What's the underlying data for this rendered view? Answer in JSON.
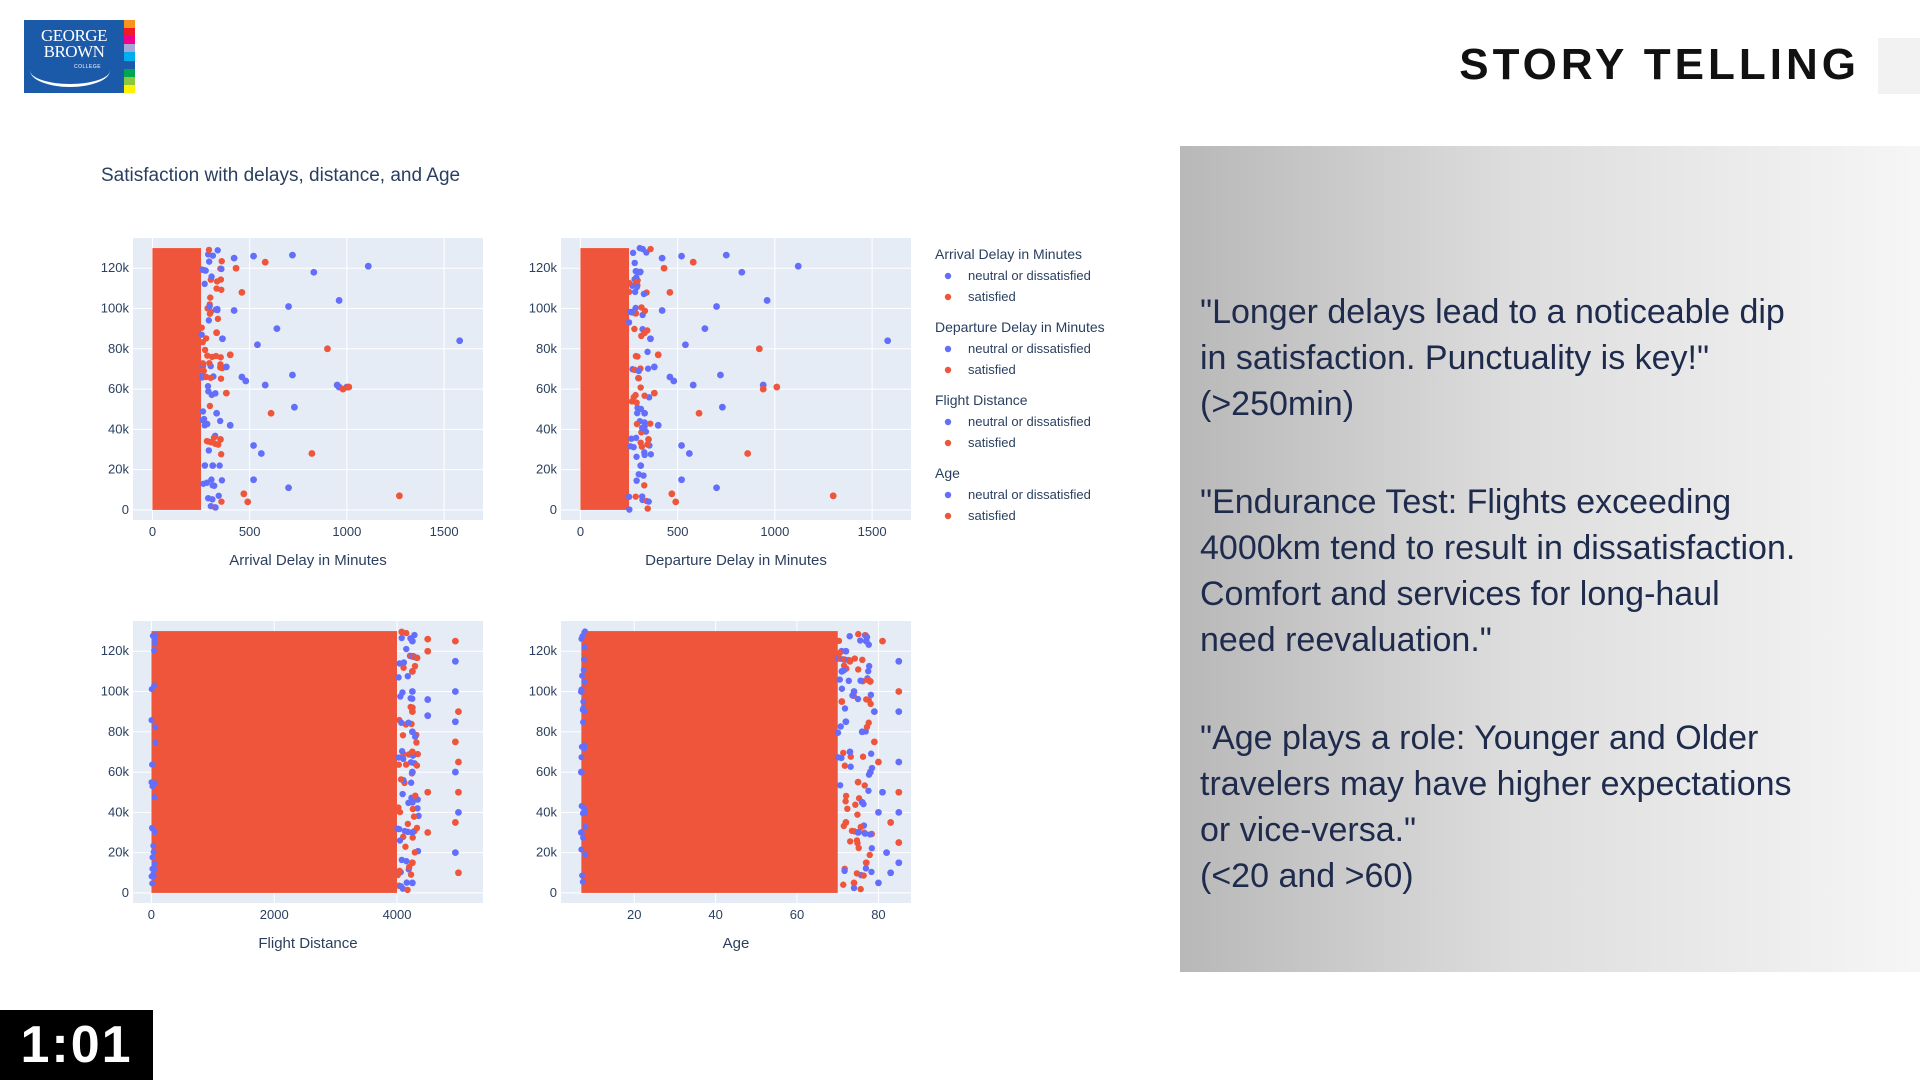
{
  "logo": {
    "line1": "GEORGE",
    "line2": "BROWN",
    "line3": "COLLEGE",
    "stripes": [
      "#f7941d",
      "#ed1c24",
      "#ec008c",
      "#a6a6d8",
      "#00aeef",
      "#1b5aa9",
      "#00a651",
      "#8dc63f",
      "#fff200"
    ]
  },
  "slide_title": "STORY TELLING",
  "timer": "1:01",
  "colors": {
    "neutral": "#636efa",
    "satisfied": "#ef553b",
    "plot_bg": "#e5ecf6",
    "axis_text": "#2a3f5f"
  },
  "chart_data": {
    "type": "scatter",
    "title": "Satisfaction with delays, distance, and Age",
    "y_ticks": [
      0,
      20000,
      40000,
      60000,
      80000,
      100000,
      120000
    ],
    "y_tick_labels": [
      "0",
      "20k",
      "40k",
      "60k",
      "80k",
      "100k",
      "120k"
    ],
    "y_range": [
      -5000,
      135000
    ],
    "series_names": [
      "neutral or dissatisfied",
      "satisfied"
    ],
    "subplots": [
      {
        "xlabel": "Arrival Delay in Minutes",
        "xlim": [
          -100,
          1700
        ],
        "x_ticks": [
          0,
          500,
          1000,
          1500
        ],
        "x_tick_labels": [
          "0",
          "500",
          "1000",
          "1500"
        ],
        "dense_x_max": 250,
        "series": [
          {
            "name": "neutral or dissatisfied",
            "points": [
              [
                420,
                125000
              ],
              [
                520,
                126000
              ],
              [
                720,
                126500
              ],
              [
                830,
                118000
              ],
              [
                1110,
                121000
              ],
              [
                960,
                104000
              ],
              [
                700,
                101000
              ],
              [
                640,
                90000
              ],
              [
                540,
                82000
              ],
              [
                1580,
                84000
              ],
              [
                720,
                67000
              ],
              [
                580,
                62000
              ],
              [
                950,
                62000
              ],
              [
                960,
                61000
              ],
              [
                730,
                51000
              ],
              [
                1000,
                61000
              ],
              [
                480,
                64000
              ],
              [
                400,
                42000
              ],
              [
                520,
                32000
              ],
              [
                560,
                28000
              ],
              [
                700,
                11000
              ],
              [
                520,
                15000
              ],
              [
                460,
                66000
              ],
              [
                380,
                71000
              ],
              [
                420,
                99000
              ],
              [
                360,
                85000
              ],
              [
                330,
                48000
              ],
              [
                310,
                22000
              ]
            ]
          },
          {
            "name": "satisfied",
            "points": [
              [
                580,
                123000
              ],
              [
                430,
                120000
              ],
              [
                900,
                80000
              ],
              [
                980,
                60000
              ],
              [
                1010,
                61000
              ],
              [
                820,
                28000
              ],
              [
                1270,
                7000
              ],
              [
                610,
                48000
              ],
              [
                470,
                8000
              ],
              [
                490,
                4000
              ],
              [
                380,
                58000
              ],
              [
                460,
                108000
              ],
              [
                400,
                77000
              ],
              [
                350,
                35000
              ],
              [
                330,
                88000
              ]
            ]
          }
        ]
      },
      {
        "xlabel": "Departure Delay in Minutes",
        "xlim": [
          -100,
          1700
        ],
        "x_ticks": [
          0,
          500,
          1000,
          1500
        ],
        "x_tick_labels": [
          "0",
          "500",
          "1000",
          "1500"
        ],
        "dense_x_max": 250,
        "series": [
          {
            "name": "neutral or dissatisfied",
            "points": [
              [
                420,
                125000
              ],
              [
                520,
                126000
              ],
              [
                750,
                126500
              ],
              [
                830,
                118000
              ],
              [
                1120,
                121000
              ],
              [
                960,
                104000
              ],
              [
                700,
                101000
              ],
              [
                640,
                90000
              ],
              [
                540,
                82000
              ],
              [
                1580,
                84000
              ],
              [
                720,
                67000
              ],
              [
                580,
                62000
              ],
              [
                940,
                62000
              ],
              [
                730,
                51000
              ],
              [
                480,
                64000
              ],
              [
                400,
                42000
              ],
              [
                520,
                32000
              ],
              [
                560,
                28000
              ],
              [
                700,
                11000
              ],
              [
                520,
                15000
              ],
              [
                460,
                66000
              ],
              [
                380,
                71000
              ],
              [
                420,
                99000
              ],
              [
                360,
                85000
              ],
              [
                330,
                48000
              ],
              [
                310,
                22000
              ]
            ]
          },
          {
            "name": "satisfied",
            "points": [
              [
                580,
                123000
              ],
              [
                430,
                120000
              ],
              [
                920,
                80000
              ],
              [
                940,
                60000
              ],
              [
                1010,
                61000
              ],
              [
                860,
                28000
              ],
              [
                1300,
                7000
              ],
              [
                610,
                48000
              ],
              [
                470,
                8000
              ],
              [
                490,
                4000
              ],
              [
                380,
                58000
              ],
              [
                460,
                108000
              ],
              [
                400,
                77000
              ],
              [
                350,
                35000
              ],
              [
                330,
                88000
              ]
            ]
          }
        ]
      },
      {
        "xlabel": "Flight Distance",
        "xlim": [
          -300,
          5400
        ],
        "x_ticks": [
          0,
          2000,
          4000
        ],
        "x_tick_labels": [
          "0",
          "2000",
          "4000"
        ],
        "dense_x_min": 0,
        "dense_x_max": 4000,
        "series": [
          {
            "name": "neutral or dissatisfied",
            "points": [
              [
                4250,
                125000
              ],
              [
                4250,
                100000
              ],
              [
                4250,
                60000
              ],
              [
                4250,
                30000
              ],
              [
                4250,
                5000
              ],
              [
                4250,
                110000
              ],
              [
                4250,
                45000
              ],
              [
                4500,
                88000
              ],
              [
                4500,
                96000
              ],
              [
                4950,
                115000
              ],
              [
                4950,
                60000
              ],
              [
                4950,
                20000
              ],
              [
                4950,
                100000
              ],
              [
                5000,
                40000
              ],
              [
                4250,
                80000
              ],
              [
                4950,
                85000
              ]
            ]
          },
          {
            "name": "satisfied",
            "points": [
              [
                4250,
                110000
              ],
              [
                4250,
                70000
              ],
              [
                4250,
                15000
              ],
              [
                4250,
                90000
              ],
              [
                4500,
                120000
              ],
              [
                4500,
                50000
              ],
              [
                4500,
                30000
              ],
              [
                4950,
                125000
              ],
              [
                4950,
                75000
              ],
              [
                5000,
                90000
              ],
              [
                5000,
                10000
              ],
              [
                5000,
                50000
              ],
              [
                4500,
                126000
              ],
              [
                4950,
                35000
              ],
              [
                5000,
                65000
              ]
            ]
          }
        ]
      },
      {
        "xlabel": "Age",
        "xlim": [
          2,
          88
        ],
        "x_ticks": [
          20,
          40,
          60,
          80
        ],
        "x_tick_labels": [
          "20",
          "40",
          "60",
          "80"
        ],
        "dense_x_min": 7,
        "dense_x_max": 70,
        "series": [
          {
            "name": "neutral or dissatisfied",
            "points": [
              [
                72,
                120000
              ],
              [
                74,
                100000
              ],
              [
                76,
                80000
              ],
              [
                78,
                60000
              ],
              [
                80,
                40000
              ],
              [
                82,
                20000
              ],
              [
                85,
                115000
              ],
              [
                85,
                90000
              ],
              [
                85,
                65000
              ],
              [
                85,
                40000
              ],
              [
                85,
                15000
              ],
              [
                71,
                110000
              ],
              [
                73,
                70000
              ],
              [
                75,
                30000
              ],
              [
                77,
                125000
              ],
              [
                79,
                90000
              ],
              [
                81,
                50000
              ],
              [
                83,
                10000
              ],
              [
                7,
                100000
              ],
              [
                7,
                60000
              ],
              [
                7,
                30000
              ],
              [
                72,
                85000
              ],
              [
                76,
                45000
              ],
              [
                80,
                5000
              ]
            ]
          },
          {
            "name": "satisfied",
            "points": [
              [
                71,
                95000
              ],
              [
                73,
                115000
              ],
              [
                75,
                55000
              ],
              [
                77,
                15000
              ],
              [
                79,
                75000
              ],
              [
                81,
                125000
              ],
              [
                83,
                35000
              ],
              [
                85,
                100000
              ],
              [
                85,
                50000
              ],
              [
                85,
                25000
              ],
              [
                72,
                35000
              ],
              [
                78,
                105000
              ],
              [
                80,
                65000
              ],
              [
                74,
                5000
              ]
            ]
          }
        ]
      }
    ],
    "legend": [
      {
        "group": "Arrival Delay in Minutes",
        "items": [
          "neutral or dissatisfied",
          "satisfied"
        ]
      },
      {
        "group": "Departure Delay in Minutes",
        "items": [
          "neutral or dissatisfied",
          "satisfied"
        ]
      },
      {
        "group": "Flight Distance",
        "items": [
          "neutral or dissatisfied",
          "satisfied"
        ]
      },
      {
        "group": "Age",
        "items": [
          "neutral or dissatisfied",
          "satisfied"
        ]
      }
    ],
    "legend_position": "right"
  },
  "story": {
    "p1": [
      "\"Longer delays lead to a noticeable dip",
      "in satisfaction. Punctuality is key!\"",
      "(>250min)"
    ],
    "p2": [
      "\"Endurance Test: Flights exceeding",
      "4000km tend to result in dissatisfaction.",
      "Comfort and services for long-haul",
      "need reevaluation.\""
    ],
    "p3": [
      "\"Age plays a role: Younger and Older",
      "travelers may have higher expectations",
      "or vice-versa.\"",
      "(<20 and >60)"
    ]
  }
}
